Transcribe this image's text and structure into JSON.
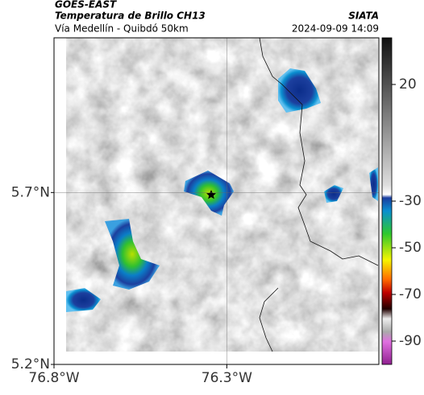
{
  "header": {
    "satellite": "GOES-EAST",
    "product": "Temperatura de Brillo CH13",
    "route": "Vía Medellín - Quibdó 50km",
    "source": "SIATA",
    "datetime": "2024-09-09 14:09"
  },
  "map": {
    "xlim": [
      -76.8,
      -75.86
    ],
    "ylim": [
      5.2,
      6.15
    ],
    "xticks": [
      {
        "value": -76.8,
        "label": "76.8°W"
      },
      {
        "value": -76.3,
        "label": "76.3°W"
      }
    ],
    "yticks": [
      {
        "value": 5.2,
        "label": "5.2°N"
      },
      {
        "value": 5.7,
        "label": "5.7°N"
      }
    ],
    "grid": true
  },
  "colorbar": {
    "clim": [
      -100,
      40
    ],
    "ticks": [
      20,
      -30,
      -50,
      -70,
      -90
    ]
  }
}
